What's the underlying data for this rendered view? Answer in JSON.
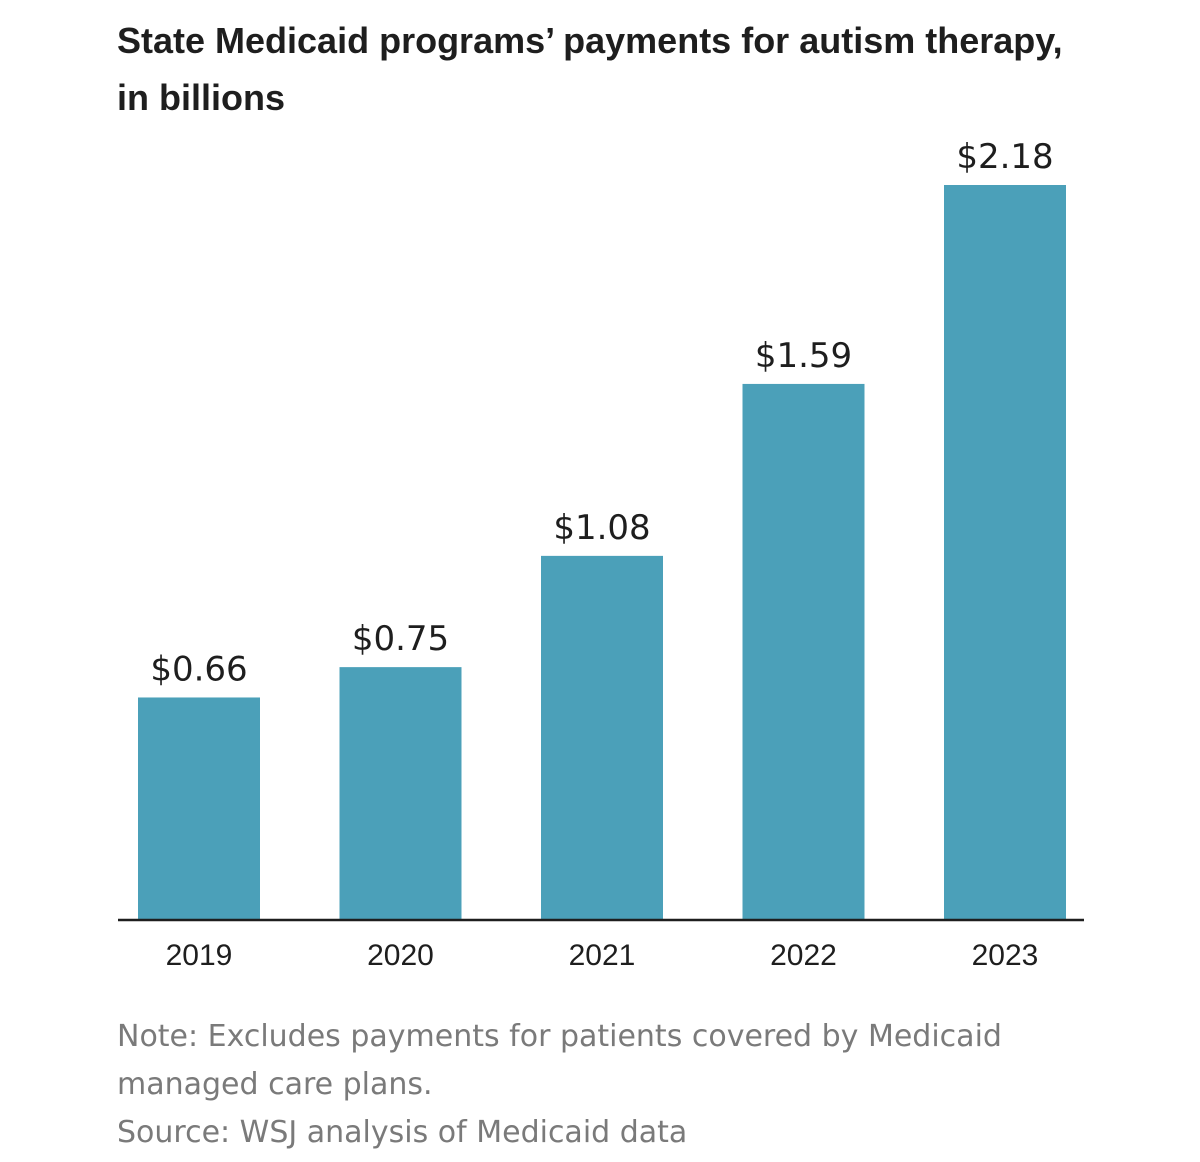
{
  "colors": {
    "bar": "#4ba0b9",
    "axis": "#1e1e1e",
    "text": "#1e1e1e",
    "footer_text": "#7a7a7a"
  },
  "chart_data": {
    "type": "bar",
    "title": "State Medicaid programs’ payments for autism therapy, in billions",
    "categories": [
      "2019",
      "2020",
      "2021",
      "2022",
      "2023"
    ],
    "values": [
      0.66,
      0.75,
      1.08,
      1.59,
      2.18
    ],
    "value_labels": [
      "$0.66",
      "$0.75",
      "$1.08",
      "$1.59",
      "$2.18"
    ],
    "xlabel": "",
    "ylabel": "",
    "ylim": [
      0,
      2.18
    ],
    "grid": false,
    "legend": "none"
  },
  "footer": {
    "note": "Note: Excludes payments for patients covered by Medicaid managed care plans.",
    "source": "Source: WSJ analysis of Medicaid data"
  }
}
